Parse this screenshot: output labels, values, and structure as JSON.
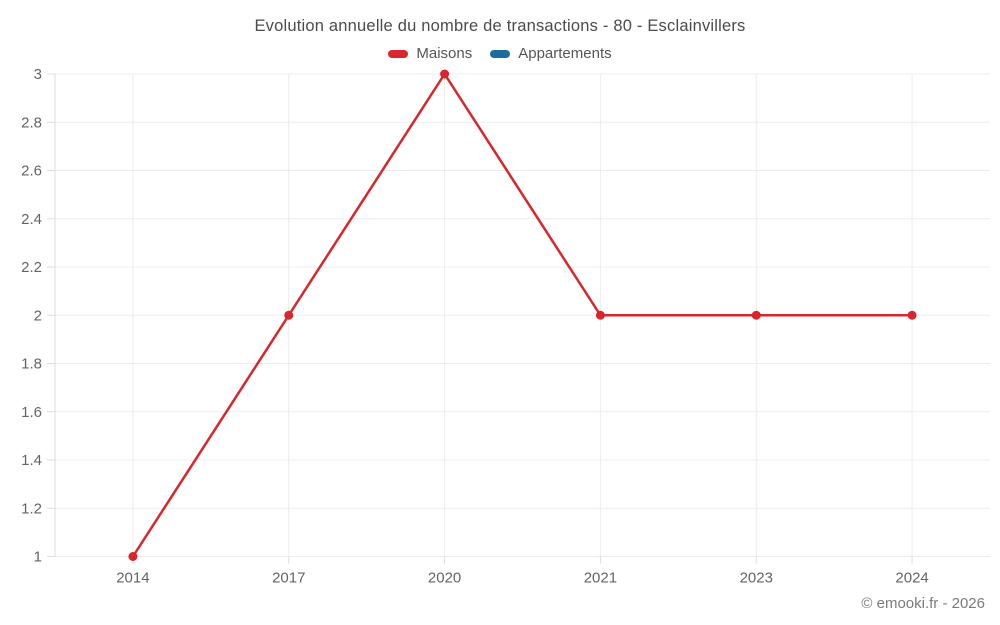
{
  "title": "Evolution annuelle du nombre de transactions - 80 - Esclainvillers",
  "footer": {
    "copyright": "© emooki.fr - 2026"
  },
  "colors": {
    "maisons": "#d8262c",
    "appartements": "#1a6d9e",
    "grid": "#ececec",
    "axis": "#dcdcdc",
    "axis_text": "#646464",
    "title_text": "#4b4b4b"
  },
  "chart_data": {
    "type": "line",
    "title": "Evolution annuelle du nombre de transactions - 80 - Esclainvillers",
    "categories": [
      "2014",
      "2017",
      "2020",
      "2021",
      "2023",
      "2024"
    ],
    "series": [
      {
        "name": "Maisons",
        "color": "#d8262c",
        "values": [
          1,
          2,
          3,
          2,
          2,
          2
        ]
      },
      {
        "name": "Appartements",
        "color": "#1a6d9e",
        "values": []
      }
    ],
    "xlabel": "",
    "ylabel": "",
    "ylim": [
      1,
      3
    ],
    "ytick_step": 0.2,
    "ytick_labels": [
      "1",
      "1.2",
      "1.4",
      "1.6",
      "1.8",
      "2",
      "2.2",
      "2.4",
      "2.6",
      "2.8",
      "3"
    ],
    "grid": true,
    "legend_position": "top",
    "marker": "circle",
    "marker_radius": 4.5,
    "line_width": 2.5
  }
}
